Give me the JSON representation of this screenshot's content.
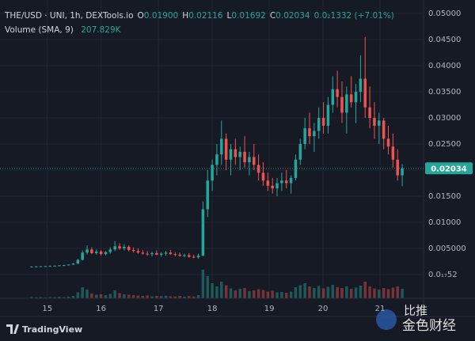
{
  "chart_data": {
    "type": "candlestick",
    "legend": {
      "symbol": "THE/USD · UNI, 1h, DEXTools.io",
      "fields": [
        {
          "key": "O",
          "value": "0.01900"
        },
        {
          "key": "H",
          "value": "0.02116"
        },
        {
          "key": "L",
          "value": "0.01692"
        },
        {
          "key": "C",
          "value": "0.02034"
        }
      ],
      "change": "0.0₂1332 (+7.01%)"
    },
    "volume_legend": {
      "name": "Volume (SMA, 9)",
      "value": "207.829K"
    },
    "up_color": "#26a69a",
    "down_color": "#ef5350",
    "candles": [
      [
        0.0015,
        0.00158,
        0.00145,
        0.00152
      ],
      [
        0.00152,
        0.0016,
        0.00148,
        0.00155
      ],
      [
        0.00155,
        0.00162,
        0.0015,
        0.00158
      ],
      [
        0.00158,
        0.00165,
        0.00152,
        0.0016
      ],
      [
        0.0016,
        0.0017,
        0.00155,
        0.00165
      ],
      [
        0.00165,
        0.00172,
        0.00158,
        0.00168
      ],
      [
        0.00168,
        0.0018,
        0.00162,
        0.00175
      ],
      [
        0.00175,
        0.00185,
        0.00168,
        0.0018
      ],
      [
        0.0018,
        0.00195,
        0.00172,
        0.0019
      ],
      [
        0.0019,
        0.0022,
        0.00185,
        0.0021
      ],
      [
        0.0021,
        0.003,
        0.002,
        0.0028
      ],
      [
        0.0028,
        0.0046,
        0.0027,
        0.0042
      ],
      [
        0.0042,
        0.0056,
        0.0038,
        0.0048
      ],
      [
        0.0048,
        0.0052,
        0.0039,
        0.0041
      ],
      [
        0.0041,
        0.0048,
        0.0038,
        0.0044
      ],
      [
        0.0044,
        0.0047,
        0.0036,
        0.0039
      ],
      [
        0.0039,
        0.0045,
        0.0037,
        0.0043
      ],
      [
        0.0043,
        0.0052,
        0.004,
        0.0048
      ],
      [
        0.0048,
        0.0064,
        0.0045,
        0.0054
      ],
      [
        0.0054,
        0.006,
        0.0047,
        0.005
      ],
      [
        0.005,
        0.0058,
        0.0046,
        0.0053
      ],
      [
        0.0053,
        0.0056,
        0.0044,
        0.0047
      ],
      [
        0.0047,
        0.0052,
        0.0042,
        0.0045
      ],
      [
        0.0045,
        0.005,
        0.004,
        0.0042
      ],
      [
        0.0042,
        0.0047,
        0.0038,
        0.004
      ],
      [
        0.004,
        0.0045,
        0.0036,
        0.0039
      ],
      [
        0.0039,
        0.0044,
        0.0035,
        0.0041
      ],
      [
        0.0041,
        0.0046,
        0.0037,
        0.0038
      ],
      [
        0.0038,
        0.0043,
        0.0034,
        0.004
      ],
      [
        0.004,
        0.0045,
        0.0036,
        0.0042
      ],
      [
        0.0042,
        0.0047,
        0.0038,
        0.0039
      ],
      [
        0.0039,
        0.0043,
        0.0035,
        0.0038
      ],
      [
        0.0038,
        0.0042,
        0.0034,
        0.0036
      ],
      [
        0.0036,
        0.004,
        0.0033,
        0.0037
      ],
      [
        0.0037,
        0.0041,
        0.0032,
        0.0034
      ],
      [
        0.0034,
        0.0038,
        0.0031,
        0.0033
      ],
      [
        0.0033,
        0.004,
        0.003,
        0.0036
      ],
      [
        0.0036,
        0.014,
        0.0035,
        0.0125
      ],
      [
        0.0125,
        0.02,
        0.011,
        0.018
      ],
      [
        0.018,
        0.022,
        0.016,
        0.021
      ],
      [
        0.021,
        0.025,
        0.019,
        0.023
      ],
      [
        0.023,
        0.0295,
        0.021,
        0.026
      ],
      [
        0.026,
        0.027,
        0.02,
        0.022
      ],
      [
        0.022,
        0.025,
        0.019,
        0.024
      ],
      [
        0.024,
        0.026,
        0.021,
        0.0225
      ],
      [
        0.0225,
        0.0245,
        0.02,
        0.0235
      ],
      [
        0.0235,
        0.0265,
        0.0205,
        0.0215
      ],
      [
        0.0215,
        0.0235,
        0.019,
        0.0225
      ],
      [
        0.0225,
        0.025,
        0.02,
        0.021
      ],
      [
        0.021,
        0.023,
        0.018,
        0.0195
      ],
      [
        0.0195,
        0.0215,
        0.017,
        0.018
      ],
      [
        0.018,
        0.0195,
        0.016,
        0.017
      ],
      [
        0.017,
        0.0185,
        0.0155,
        0.0165
      ],
      [
        0.0165,
        0.0185,
        0.015,
        0.0175
      ],
      [
        0.0175,
        0.0195,
        0.016,
        0.018
      ],
      [
        0.018,
        0.02,
        0.0165,
        0.0175
      ],
      [
        0.0175,
        0.019,
        0.0155,
        0.0185
      ],
      [
        0.0185,
        0.023,
        0.018,
        0.022
      ],
      [
        0.022,
        0.026,
        0.021,
        0.025
      ],
      [
        0.025,
        0.03,
        0.024,
        0.028
      ],
      [
        0.028,
        0.031,
        0.025,
        0.0265
      ],
      [
        0.0265,
        0.029,
        0.0235,
        0.0275
      ],
      [
        0.0275,
        0.032,
        0.026,
        0.03
      ],
      [
        0.03,
        0.033,
        0.027,
        0.0285
      ],
      [
        0.0285,
        0.034,
        0.027,
        0.0325
      ],
      [
        0.0325,
        0.038,
        0.031,
        0.0355
      ],
      [
        0.0355,
        0.039,
        0.032,
        0.034
      ],
      [
        0.034,
        0.037,
        0.029,
        0.031
      ],
      [
        0.031,
        0.036,
        0.027,
        0.0345
      ],
      [
        0.0345,
        0.038,
        0.032,
        0.033
      ],
      [
        0.033,
        0.0365,
        0.029,
        0.035
      ],
      [
        0.035,
        0.042,
        0.033,
        0.0375
      ],
      [
        0.0375,
        0.0455,
        0.03,
        0.032
      ],
      [
        0.032,
        0.036,
        0.028,
        0.03
      ],
      [
        0.03,
        0.033,
        0.026,
        0.0285
      ],
      [
        0.0285,
        0.031,
        0.025,
        0.0295
      ],
      [
        0.0295,
        0.03,
        0.024,
        0.026
      ],
      [
        0.026,
        0.0285,
        0.023,
        0.0245
      ],
      [
        0.0245,
        0.027,
        0.0205,
        0.022
      ],
      [
        0.022,
        0.024,
        0.018,
        0.019
      ],
      [
        0.019,
        0.02116,
        0.01692,
        0.02034
      ]
    ],
    "volumes": [
      30000,
      25000,
      28000,
      22000,
      30000,
      26000,
      35000,
      30000,
      40000,
      60000,
      150000,
      280000,
      220000,
      120000,
      90000,
      100000,
      80000,
      110000,
      200000,
      130000,
      100000,
      90000,
      80000,
      70000,
      60000,
      70000,
      50000,
      60000,
      55000,
      65000,
      50000,
      45000,
      60000,
      40000,
      55000,
      45000,
      80000,
      720000,
      560000,
      380000,
      300000,
      420000,
      330000,
      250000,
      200000,
      240000,
      260000,
      180000,
      200000,
      230000,
      210000,
      170000,
      190000,
      150000,
      160000,
      140000,
      170000,
      280000,
      330000,
      380000,
      300000,
      260000,
      310000,
      250000,
      290000,
      340000,
      280000,
      260000,
      300000,
      240000,
      270000,
      320000,
      420000,
      300000,
      250000,
      220000,
      260000,
      230000,
      270000,
      300000,
      240000
    ],
    "vlim": [
      0,
      800000
    ],
    "ylim": [
      -0.00455,
      0.05258
    ],
    "yticks": [
      {
        "value": 0.05,
        "label": "0.05000"
      },
      {
        "value": 0.045,
        "label": "0.04500"
      },
      {
        "value": 0.04,
        "label": "0.04000"
      },
      {
        "value": 0.035,
        "label": "0.03500"
      },
      {
        "value": 0.03,
        "label": "0.03000"
      },
      {
        "value": 0.025,
        "label": "0.02500"
      },
      {
        "value": 0.02,
        "label": "0.02000"
      },
      {
        "value": 0.015,
        "label": "0.01500"
      },
      {
        "value": 0.01,
        "label": "0.01000"
      },
      {
        "value": 0.005,
        "label": "0.005000"
      },
      {
        "value": 0,
        "label": "0.0₁₇52"
      }
    ],
    "xlim": [
      -6.8,
      84.6
    ],
    "xticks": [
      {
        "value": 3.4,
        "label": "15"
      },
      {
        "value": 15.0,
        "label": "16"
      },
      {
        "value": 27.4,
        "label": "17"
      },
      {
        "value": 39.0,
        "label": "18"
      },
      {
        "value": 51.3,
        "label": "19"
      },
      {
        "value": 62.9,
        "label": "20"
      },
      {
        "value": 75.2,
        "label": "21"
      }
    ],
    "grid": true,
    "brand": "TradingView",
    "watermark": [
      "比推",
      "金色财经"
    ]
  }
}
